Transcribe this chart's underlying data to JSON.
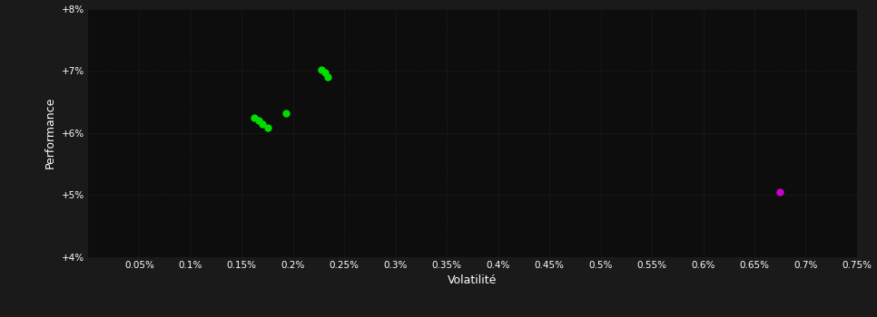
{
  "background_color": "#1a1a1a",
  "plot_bg_color": "#0d0d0d",
  "grid_color": "#2a2a2a",
  "text_color": "#ffffff",
  "xlabel": "Volatilité",
  "ylabel": "Performance",
  "xlim": [
    0.0,
    0.0075
  ],
  "ylim": [
    0.04,
    0.08
  ],
  "xticks": [
    0.0005,
    0.001,
    0.0015,
    0.002,
    0.0025,
    0.003,
    0.0035,
    0.004,
    0.0045,
    0.005,
    0.0055,
    0.006,
    0.0065,
    0.007,
    0.0075
  ],
  "yticks": [
    0.04,
    0.05,
    0.06,
    0.07,
    0.08
  ],
  "green_points": [
    [
      0.00162,
      0.0625
    ],
    [
      0.00167,
      0.062
    ],
    [
      0.0017,
      0.0614
    ],
    [
      0.00175,
      0.0608
    ],
    [
      0.00193,
      0.0632
    ],
    [
      0.00228,
      0.0702
    ],
    [
      0.00231,
      0.0697
    ],
    [
      0.00234,
      0.069
    ]
  ],
  "magenta_points": [
    [
      0.00675,
      0.0505
    ]
  ],
  "green_color": "#00dd00",
  "magenta_color": "#cc00cc",
  "point_size": 25
}
